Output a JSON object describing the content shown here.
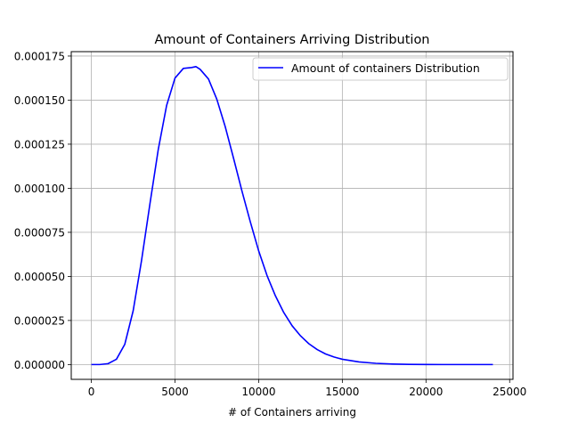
{
  "chart_data": {
    "type": "line",
    "title": "Amount of Containers Arriving Distribution",
    "xlabel": "# of Containers arriving",
    "ylabel": "",
    "xlim": [
      -1200,
      25200
    ],
    "ylim": [
      -8.4e-06,
      0.0001775
    ],
    "grid": true,
    "legend_position": "upper right",
    "x_ticks": [
      0,
      5000,
      10000,
      15000,
      20000,
      25000
    ],
    "x_tick_labels": [
      "0",
      "5000",
      "10000",
      "15000",
      "20000",
      "25000"
    ],
    "y_ticks": [
      0,
      2.5e-05,
      5e-05,
      7.5e-05,
      0.0001,
      0.000125,
      0.00015,
      0.000175
    ],
    "y_tick_labels": [
      "0.000000",
      "0.000025",
      "0.000050",
      "0.000075",
      "0.000100",
      "0.000125",
      "0.000150",
      "0.000175"
    ],
    "series": [
      {
        "name": "Amount of containers Distribution",
        "color": "#0000ff",
        "x": [
          0,
          500,
          1000,
          1500,
          2000,
          2500,
          3000,
          3500,
          4000,
          4500,
          5000,
          5500,
          6000,
          6250,
          6500,
          7000,
          7500,
          8000,
          8500,
          9000,
          9500,
          10000,
          10500,
          11000,
          11500,
          12000,
          12500,
          13000,
          13500,
          14000,
          14500,
          15000,
          16000,
          17000,
          18000,
          19000,
          20000,
          21000,
          22000,
          23000,
          24000
        ],
        "y": [
          0,
          0,
          5e-07,
          3e-06,
          1.15e-05,
          3.05e-05,
          5.9e-05,
          9.1e-05,
          0.000122,
          0.000147,
          0.0001625,
          0.000168,
          0.0001685,
          0.000169,
          0.0001675,
          0.000162,
          0.0001505,
          0.000135,
          0.000117,
          9.85e-05,
          8.1e-05,
          6.45e-05,
          5.05e-05,
          3.9e-05,
          2.95e-05,
          2.2e-05,
          1.63e-05,
          1.18e-05,
          8.5e-06,
          6e-06,
          4.3e-06,
          3e-06,
          1.5e-06,
          7e-07,
          3e-07,
          1e-07,
          5e-08,
          0,
          0,
          0,
          0
        ]
      }
    ]
  }
}
